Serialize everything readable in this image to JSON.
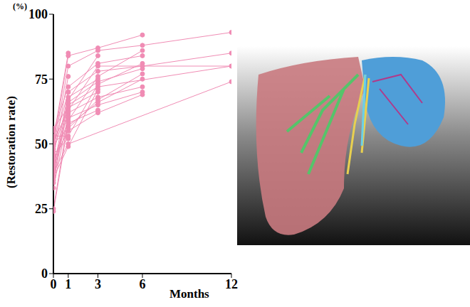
{
  "chart_data": {
    "type": "line",
    "x_label": "Months",
    "y_label": "(Restoration rate)",
    "annotations": [
      "(%)"
    ],
    "x": [
      0,
      1,
      3,
      6,
      12
    ],
    "xlim": [
      0,
      12
    ],
    "xticks": [
      0,
      1,
      3,
      6,
      12
    ],
    "ylim": [
      0,
      100
    ],
    "yticks": [
      0,
      25,
      50,
      75,
      100
    ],
    "grid": false,
    "color": "#f08cb4",
    "marker": "circle",
    "line_style": "solid",
    "series": [
      {
        "values": [
          52,
          85,
          null,
          null,
          null
        ]
      },
      {
        "values": [
          50,
          84,
          87,
          92,
          null
        ]
      },
      {
        "values": [
          48,
          80,
          86,
          88,
          93
        ]
      },
      {
        "values": [
          45,
          76,
          null,
          null,
          null
        ]
      },
      {
        "values": [
          55,
          72,
          81,
          84,
          null
        ]
      },
      {
        "values": [
          40,
          70,
          78,
          80,
          85
        ]
      },
      {
        "values": [
          38,
          68,
          75,
          null,
          null
        ]
      },
      {
        "values": [
          47,
          66,
          74,
          79,
          null
        ]
      },
      {
        "values": [
          35,
          65,
          72,
          null,
          80
        ]
      },
      {
        "values": [
          56,
          64,
          70,
          null,
          null
        ]
      },
      {
        "values": [
          42,
          62,
          68,
          72,
          null
        ]
      },
      {
        "values": [
          33,
          61,
          null,
          null,
          null
        ]
      },
      {
        "values": [
          25,
          60,
          65,
          70,
          null
        ]
      },
      {
        "values": [
          24,
          58,
          63,
          null,
          null
        ]
      },
      {
        "values": [
          50,
          56,
          67,
          77,
          null
        ]
      },
      {
        "values": [
          44,
          55,
          62,
          69,
          null
        ]
      },
      {
        "values": [
          53,
          53,
          73,
          81,
          null
        ]
      },
      {
        "values": [
          46,
          52,
          null,
          null,
          null
        ]
      },
      {
        "values": [
          39,
          50,
          null,
          null,
          74
        ]
      },
      {
        "values": [
          37,
          49,
          71,
          null,
          null
        ]
      },
      {
        "values": [
          51,
          63,
          80,
          80,
          80
        ]
      },
      {
        "values": [
          43,
          59,
          76,
          86,
          null
        ]
      },
      {
        "values": [
          36,
          67,
          84,
          null,
          null
        ]
      },
      {
        "values": [
          49,
          70,
          null,
          null,
          null
        ]
      },
      {
        "values": [
          41,
          57,
          66,
          75,
          null
        ]
      }
    ]
  }
}
